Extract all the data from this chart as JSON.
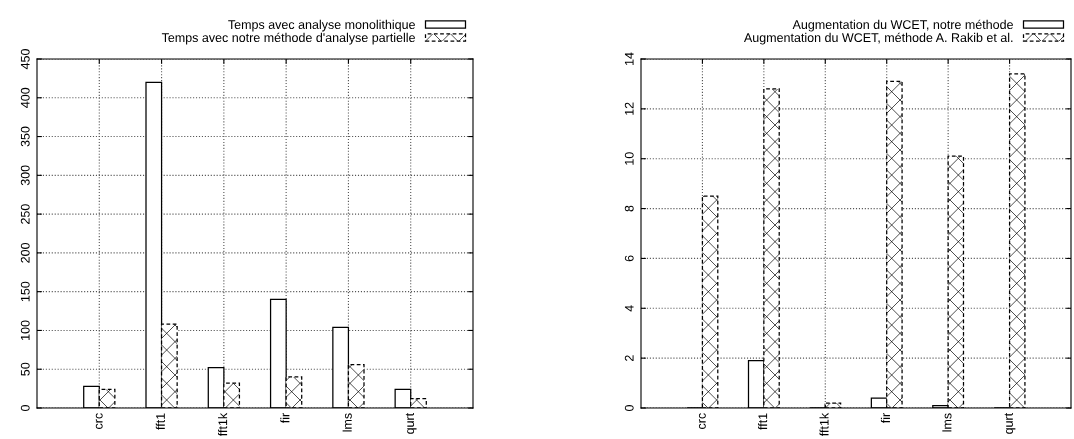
{
  "chart_data": [
    {
      "type": "bar",
      "categories": [
        "crc",
        "fft1",
        "fft1k",
        "fir",
        "lms",
        "qurt"
      ],
      "series": [
        {
          "name": "Temps avec analyse monolithique",
          "color": "#ffffff",
          "values": [
            28,
            420,
            52,
            140,
            104,
            24
          ]
        },
        {
          "name": "Temps avec notre méthode d'analyse partielle",
          "color": "#000000",
          "values": [
            24,
            108,
            32,
            40,
            56,
            12
          ]
        }
      ],
      "ylim": [
        0,
        450
      ],
      "yticks": [
        0,
        50,
        100,
        150,
        200,
        250,
        300,
        350,
        400,
        450
      ],
      "grid": true,
      "legend": "top right"
    },
    {
      "type": "bar",
      "categories": [
        "crc",
        "fft1",
        "fft1k",
        "fir",
        "lms",
        "qurt"
      ],
      "series": [
        {
          "name": "Augmentation du WCET, notre méthode",
          "color": "#ffffff",
          "values": [
            0,
            1.9,
            0,
            0.4,
            0.1,
            0
          ]
        },
        {
          "name": "Augmentation du WCET, méthode A. Rakib et al.",
          "color": "#000000",
          "values": [
            8.5,
            12.8,
            0.2,
            13.1,
            10.1,
            13.4
          ]
        }
      ],
      "ylim": [
        0,
        14
      ],
      "yticks": [
        0,
        2,
        4,
        6,
        8,
        10,
        12,
        14
      ],
      "grid": true,
      "legend": "top right"
    }
  ]
}
